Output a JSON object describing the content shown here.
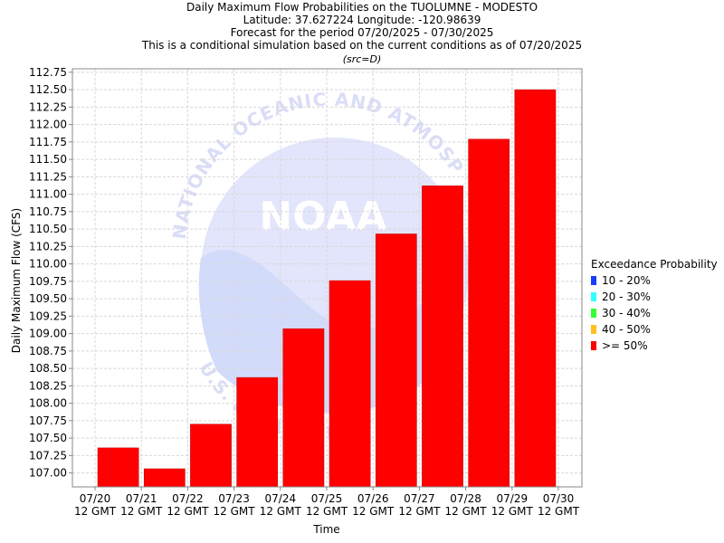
{
  "chart_data": {
    "type": "bar",
    "title": "Daily Maximum Flow Probabilities on the TUOLUMNE - MODESTO",
    "subtitle_lines": [
      "Latitude: 37.627224 Longitude: -120.98639",
      "Forecast for the period 07/20/2025 - 07/30/2025",
      "This is a conditional simulation based on the current conditions as of 07/20/2025",
      "(src=D)"
    ],
    "xlabel": "Time",
    "ylabel": "Daily Maximum Flow (CFS)",
    "x_ticks": [
      "07/20",
      "07/21",
      "07/22",
      "07/23",
      "07/24",
      "07/25",
      "07/26",
      "07/27",
      "07/28",
      "07/29",
      "07/30"
    ],
    "x_tick_suffix": "12 GMT",
    "ylim": [
      106.8,
      112.8
    ],
    "y_ticks": [
      107.0,
      107.25,
      107.5,
      107.75,
      108.0,
      108.25,
      108.5,
      108.75,
      109.0,
      109.25,
      109.5,
      109.75,
      110.0,
      110.25,
      110.5,
      110.75,
      111.0,
      111.25,
      111.5,
      111.75,
      112.0,
      112.25,
      112.5,
      112.75
    ],
    "grid": true,
    "legend": {
      "title": "Exceedance Probability",
      "placement": "right",
      "entries": [
        {
          "label": "10 - 20%",
          "color": "#1a3cff"
        },
        {
          "label": "20 - 30%",
          "color": "#33ffff"
        },
        {
          "label": "30 - 40%",
          "color": "#33ff33"
        },
        {
          "label": "40 - 50%",
          "color": "#ffc020"
        },
        {
          "label": ">= 50%",
          "color": "#ff0000"
        }
      ]
    },
    "series": [
      {
        "probability": ">= 50%",
        "color": "#ff0000",
        "values": [
          107.36,
          107.06,
          107.7,
          108.37,
          109.07,
          109.76,
          110.43,
          111.12,
          111.79,
          112.5
        ]
      }
    ],
    "watermark": {
      "agency": "NATIONAL OCEANIC AND ATMOSPHERIC ADMINISTRATION",
      "logo": "NOAA",
      "dept": "U.S. DEPARTMENT OF COMMERCE"
    }
  }
}
